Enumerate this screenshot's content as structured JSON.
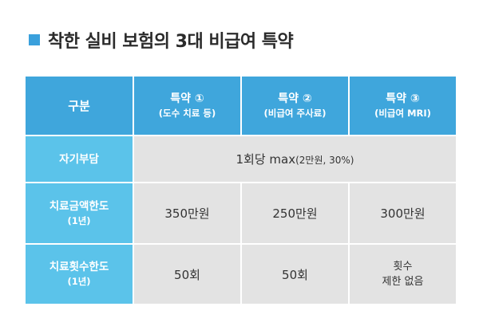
{
  "title": "착한 실비 보험의 3대 비급여 특약",
  "table": {
    "corner": "구분",
    "columns": [
      {
        "name": "특약 ①",
        "detail": "(도수 치료 등)"
      },
      {
        "name": "특약 ②",
        "detail": "(비급여 주사료)"
      },
      {
        "name": "특약 ③",
        "detail": "(비급여 MRI)"
      }
    ],
    "rows": {
      "copay": {
        "label": "자기부담",
        "value_main": "1회당 max",
        "value_detail": "(2만원, 30%)"
      },
      "limit_amount": {
        "label": "치료금액한도",
        "sub": "(1년)",
        "values": [
          "350만원",
          "250만원",
          "300만원"
        ]
      },
      "limit_count": {
        "label": "치료횟수한도",
        "sub": "(1년)",
        "values": [
          "50회",
          "50회"
        ],
        "last_line1": "횟수",
        "last_line2": "제한 없음"
      }
    }
  },
  "colors": {
    "header": "#3fa6dc",
    "row_label": "#5bc3ea",
    "cell": "#e3e3e3",
    "bullet": "#3aa0dc"
  }
}
